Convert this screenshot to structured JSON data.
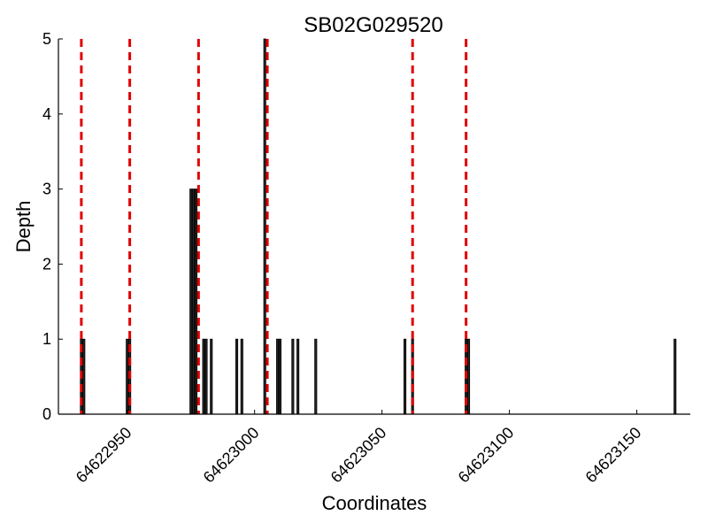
{
  "chart_data": {
    "type": "bar",
    "title": "SB02G029520",
    "xlabel": "Coordinates",
    "ylabel": "Depth",
    "xlim": [
      64622923,
      64623171
    ],
    "ylim": [
      0,
      5
    ],
    "xticks": [
      64622950,
      64623000,
      64623050,
      64623100,
      64623150
    ],
    "xtick_labels": [
      "64622950",
      "64623000",
      "64623050",
      "64623100",
      "64623150"
    ],
    "yticks": [
      0,
      1,
      2,
      3,
      4,
      5
    ],
    "ytick_labels": [
      "0",
      "1",
      "2",
      "3",
      "4",
      "5"
    ],
    "grid": false,
    "bar_color": "#262626",
    "bar_edge_color": "#000000",
    "bars": [
      {
        "x": 64622932,
        "depth": 1
      },
      {
        "x": 64622933,
        "depth": 1
      },
      {
        "x": 64622950,
        "depth": 1
      },
      {
        "x": 64622951,
        "depth": 1
      },
      {
        "x": 64622975,
        "depth": 3
      },
      {
        "x": 64622976,
        "depth": 3
      },
      {
        "x": 64622977,
        "depth": 3
      },
      {
        "x": 64622980,
        "depth": 1
      },
      {
        "x": 64622981,
        "depth": 1
      },
      {
        "x": 64622983,
        "depth": 1
      },
      {
        "x": 64622993,
        "depth": 1
      },
      {
        "x": 64622995,
        "depth": 1
      },
      {
        "x": 64623004,
        "depth": 5
      },
      {
        "x": 64623009,
        "depth": 1
      },
      {
        "x": 64623010,
        "depth": 1
      },
      {
        "x": 64623015,
        "depth": 1
      },
      {
        "x": 64623017,
        "depth": 1
      },
      {
        "x": 64623024,
        "depth": 1
      },
      {
        "x": 64623059,
        "depth": 1
      },
      {
        "x": 64623062,
        "depth": 1
      },
      {
        "x": 64623083,
        "depth": 1
      },
      {
        "x": 64623084,
        "depth": 1
      },
      {
        "x": 64623165,
        "depth": 1
      }
    ],
    "vlines": {
      "color": "#e00000",
      "style": "dashed",
      "x": [
        64622932,
        64622951,
        64622978,
        64623005,
        64623062,
        64623083
      ]
    }
  }
}
